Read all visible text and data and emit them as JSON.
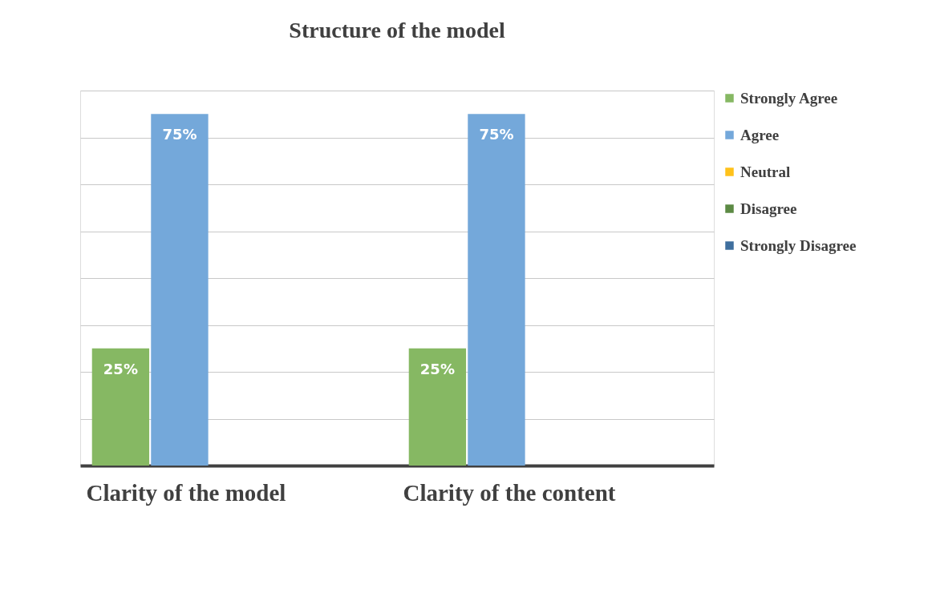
{
  "chart_data": {
    "type": "bar",
    "title": "Structure of the model",
    "categories": [
      "Clarity of the model",
      "Clarity of the content"
    ],
    "series": [
      {
        "name": "Strongly Agree",
        "color": "#86b863",
        "values": [
          25,
          25
        ],
        "value_labels": [
          "25%",
          "25%"
        ]
      },
      {
        "name": "Agree",
        "color": "#74a8da",
        "values": [
          75,
          75
        ],
        "value_labels": [
          "75%",
          "75%"
        ]
      },
      {
        "name": "Neutral",
        "color": "#ffc21a",
        "values": [
          0,
          0
        ]
      },
      {
        "name": "Disagree",
        "color": "#5c8a44",
        "values": [
          0,
          0
        ]
      },
      {
        "name": "Strongly Disagree",
        "color": "#3f6f9e",
        "values": [
          0,
          0
        ]
      }
    ],
    "ylim": [
      0,
      80
    ],
    "yticks": [
      {
        "value": 0,
        "label": null
      },
      {
        "value": 10,
        "label": null
      },
      {
        "value": 20,
        "label": null
      },
      {
        "value": 30,
        "label": null
      },
      {
        "value": 40,
        "label": null
      },
      {
        "value": 50,
        "label": null
      },
      {
        "value": 60,
        "label": null
      },
      {
        "value": 70,
        "label": null
      },
      {
        "value": 80,
        "label": null
      }
    ],
    "grid": "y",
    "legend": "right",
    "tick_labels": "x"
  }
}
